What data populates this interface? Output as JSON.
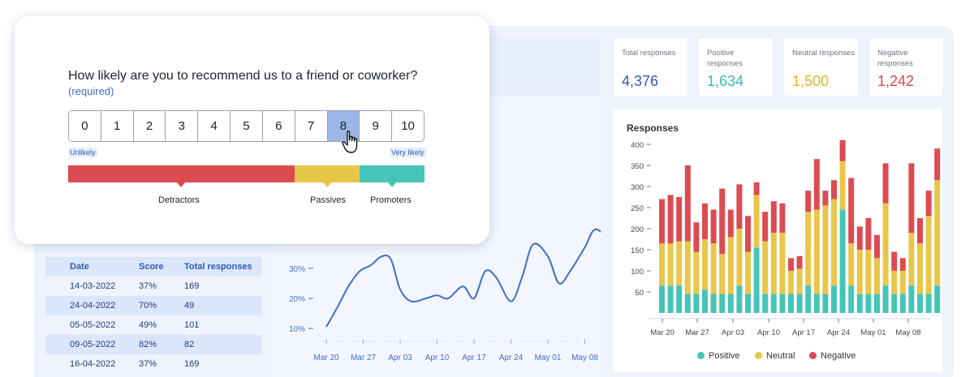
{
  "survey": {
    "question": "How likely are you to recommend us to a friend or coworker?",
    "required_label": "(required)",
    "scale": [
      "0",
      "1",
      "2",
      "3",
      "4",
      "5",
      "6",
      "7",
      "8",
      "9",
      "10"
    ],
    "selected_value": 8,
    "low_label": "Unlikely",
    "high_label": "Very likely",
    "categories": [
      {
        "name": "Detractors",
        "color": "#dd4b52"
      },
      {
        "name": "Passives",
        "color": "#e8c64a"
      },
      {
        "name": "Promoters",
        "color": "#45c4b8"
      }
    ]
  },
  "table": {
    "headers": [
      "Date",
      "Score",
      "Total responses"
    ],
    "rows": [
      [
        "14-03-2022",
        "37%",
        "169"
      ],
      [
        "24-04-2022",
        "70%",
        "49"
      ],
      [
        "05-05-2022",
        "49%",
        "101"
      ],
      [
        "09-05-2022",
        "82%",
        "82"
      ],
      [
        "16-04-2022",
        "37%",
        "169"
      ]
    ]
  },
  "stats": [
    {
      "label": "Total responses",
      "value": "4,376",
      "color": "#2f5dac"
    },
    {
      "label": "Positive responses",
      "value": "1,634",
      "color": "#3cbcb0"
    },
    {
      "label": "Neutral responses",
      "value": "1,500",
      "color": "#e0b52c"
    },
    {
      "label": "Negative responses",
      "value": "1,242",
      "color": "#d9434c"
    }
  ],
  "chart_data": [
    {
      "type": "line",
      "title": "",
      "x_ticks": [
        "Mar 20",
        "Mar 27",
        "Apr 03",
        "Apr 10",
        "Apr 17",
        "Apr 24",
        "May 01",
        "May 08"
      ],
      "y_ticks": [
        "10%",
        "20%",
        "30%"
      ],
      "x": [
        0,
        0.3,
        0.6,
        0.9,
        1.2,
        1.5,
        1.75,
        2.0,
        2.3,
        2.7,
        3.0,
        3.3,
        3.7,
        4.0,
        4.3,
        4.6,
        5.0,
        5.3,
        5.6,
        6.0,
        6.3,
        6.6,
        7.0,
        7.3,
        7.8,
        8.0
      ],
      "y": [
        10.5,
        17,
        24,
        29,
        31,
        34,
        33,
        23,
        19,
        20,
        21,
        20,
        24,
        20,
        29,
        27,
        19,
        27,
        38,
        34,
        25,
        29,
        37,
        43,
        38,
        40
      ],
      "color": "#3f6fc4",
      "ylim": [
        5,
        45
      ]
    },
    {
      "type": "bar",
      "title": "Responses",
      "stacked": true,
      "x_ticks": [
        "Mar 20",
        "Mar 27",
        "Apr 03",
        "Apr 10",
        "Apr 17",
        "Apr 24",
        "May 01",
        "May 08"
      ],
      "y_ticks": [
        50,
        100,
        150,
        200,
        250,
        300,
        350,
        400
      ],
      "ylim": [
        0,
        420
      ],
      "series": [
        {
          "name": "Positive",
          "color": "#45c4b8",
          "values": [
            65,
            65,
            65,
            45,
            45,
            55,
            45,
            45,
            45,
            65,
            45,
            155,
            45,
            45,
            45,
            45,
            45,
            65,
            45,
            45,
            65,
            245,
            65,
            45,
            45,
            45,
            65,
            45,
            45,
            65,
            45,
            45,
            65,
            45
          ]
        },
        {
          "name": "Neutral",
          "color": "#e8c64a",
          "values": [
            100,
            100,
            105,
            125,
            100,
            120,
            120,
            95,
            135,
            135,
            100,
            125,
            125,
            145,
            145,
            55,
            60,
            175,
            200,
            210,
            205,
            115,
            100,
            105,
            105,
            85,
            195,
            55,
            55,
            125,
            120,
            185,
            250,
            45
          ]
        },
        {
          "name": "Negative",
          "color": "#dd4b52",
          "values": [
            105,
            115,
            105,
            180,
            70,
            85,
            80,
            155,
            65,
            105,
            85,
            30,
            70,
            75,
            70,
            30,
            30,
            50,
            120,
            35,
            45,
            50,
            155,
            55,
            75,
            55,
            95,
            45,
            30,
            165,
            60,
            60,
            75,
            60
          ]
        }
      ]
    }
  ]
}
